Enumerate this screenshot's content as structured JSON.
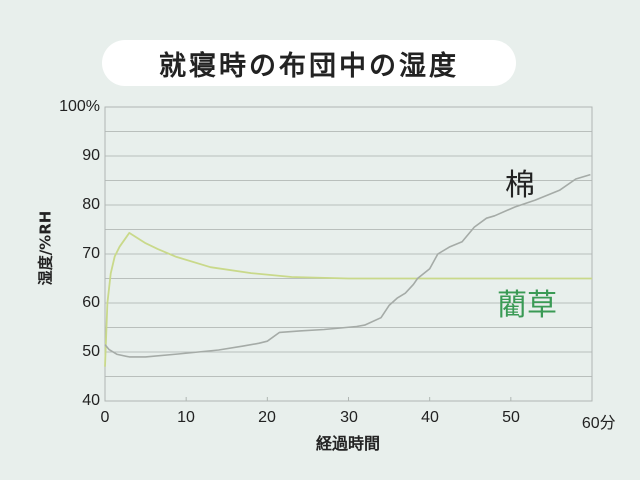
{
  "title": "就寝時の布団中の湿度",
  "chart_data": {
    "type": "line",
    "title": "就寝時の布団中の湿度",
    "xlabel": "経過時間",
    "ylabel": "湿度/%RH",
    "xlim": [
      0,
      60
    ],
    "ylim": [
      40,
      100
    ],
    "x_ticks": [
      "0",
      "10",
      "20",
      "30",
      "40",
      "50",
      "60分"
    ],
    "y_ticks": [
      "40",
      "50",
      "60",
      "70",
      "80",
      "90",
      "100%"
    ],
    "grid": true,
    "grid_step": 5,
    "legend_position": "inline labels",
    "series": [
      {
        "name": "棉",
        "color": "#a5aba7",
        "label_color": "#222222",
        "x": [
          0,
          0.5,
          1.5,
          3,
          5,
          9,
          14,
          17,
          19,
          20,
          21.5,
          24,
          27,
          31,
          32,
          34,
          35,
          36,
          37,
          38,
          38.5,
          40,
          41,
          42.5,
          44,
          45.5,
          47,
          48,
          50.5,
          53,
          56,
          58,
          59.8
        ],
        "values": [
          51.5,
          50.5,
          49.5,
          49,
          49,
          49.6,
          50.4,
          51.2,
          51.8,
          52.2,
          54,
          54.3,
          54.6,
          55.2,
          55.5,
          57,
          59.5,
          61,
          62,
          63.8,
          65,
          67,
          70,
          71.5,
          72.5,
          75.5,
          77.3,
          77.8,
          79.6,
          81,
          83,
          85.3,
          86.2
        ]
      },
      {
        "name": "藺草",
        "color": "#c9d98a",
        "label_color": "#3a9a55",
        "x": [
          0,
          0.3,
          0.7,
          1.2,
          1.8,
          3,
          5,
          6.5,
          8.8,
          13,
          18,
          23,
          30,
          40,
          50,
          60
        ],
        "values": [
          47,
          60,
          66,
          69.5,
          71.5,
          74.3,
          72.2,
          71,
          69.4,
          67.3,
          66.1,
          65.3,
          65,
          65,
          65,
          65
        ]
      }
    ]
  },
  "plot": {
    "background": "#e8efec",
    "grid_color": "#b9bfbc",
    "border_color": "#b0b6b3"
  }
}
